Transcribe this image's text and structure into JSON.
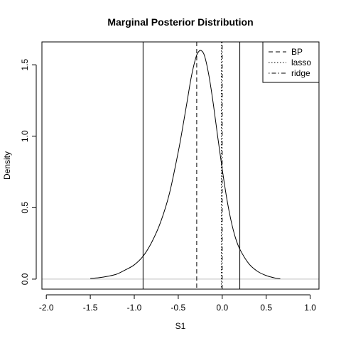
{
  "chart_data": {
    "type": "line",
    "title": "Marginal Posterior Distribution",
    "xlabel": "S1",
    "ylabel": "Density",
    "xlim": [
      -2.05,
      1.1
    ],
    "ylim": [
      -0.07,
      1.66
    ],
    "x_ticks": [
      -2.0,
      -1.5,
      -1.0,
      -0.5,
      0.0,
      0.5,
      1.0
    ],
    "x_tick_labels": [
      "-2.0",
      "-1.5",
      "-1.0",
      "-0.5",
      "0.0",
      "0.5",
      "1.0"
    ],
    "y_ticks": [
      0.0,
      0.5,
      1.0,
      1.5
    ],
    "y_tick_labels": [
      "0.0",
      "0.5",
      "1.0",
      "1.5"
    ],
    "grid": false,
    "legend_position": "top-right",
    "density_curve": {
      "x": [
        -1.5,
        -1.4,
        -1.3,
        -1.2,
        -1.1,
        -1.0,
        -0.9,
        -0.8,
        -0.7,
        -0.6,
        -0.5,
        -0.45,
        -0.4,
        -0.35,
        -0.3,
        -0.27,
        -0.24,
        -0.2,
        -0.15,
        -0.1,
        -0.05,
        0.0,
        0.05,
        0.1,
        0.15,
        0.2,
        0.3,
        0.4,
        0.5,
        0.6,
        0.66
      ],
      "y": [
        0.005,
        0.01,
        0.02,
        0.035,
        0.065,
        0.1,
        0.16,
        0.26,
        0.4,
        0.6,
        0.89,
        1.06,
        1.24,
        1.42,
        1.55,
        1.59,
        1.6,
        1.56,
        1.42,
        1.22,
        0.99,
        0.77,
        0.57,
        0.41,
        0.29,
        0.21,
        0.11,
        0.055,
        0.025,
        0.008,
        0.002
      ]
    },
    "interval_bounds": [
      -0.9,
      0.2
    ],
    "reference_lines": [
      {
        "name": "BP",
        "x": -0.29,
        "style": "dashed"
      },
      {
        "name": "lasso",
        "x": -0.01,
        "style": "dotted"
      },
      {
        "name": "ridge",
        "x": 0.0,
        "style": "dotdash"
      }
    ],
    "zero_line_color": "#bebebe"
  }
}
